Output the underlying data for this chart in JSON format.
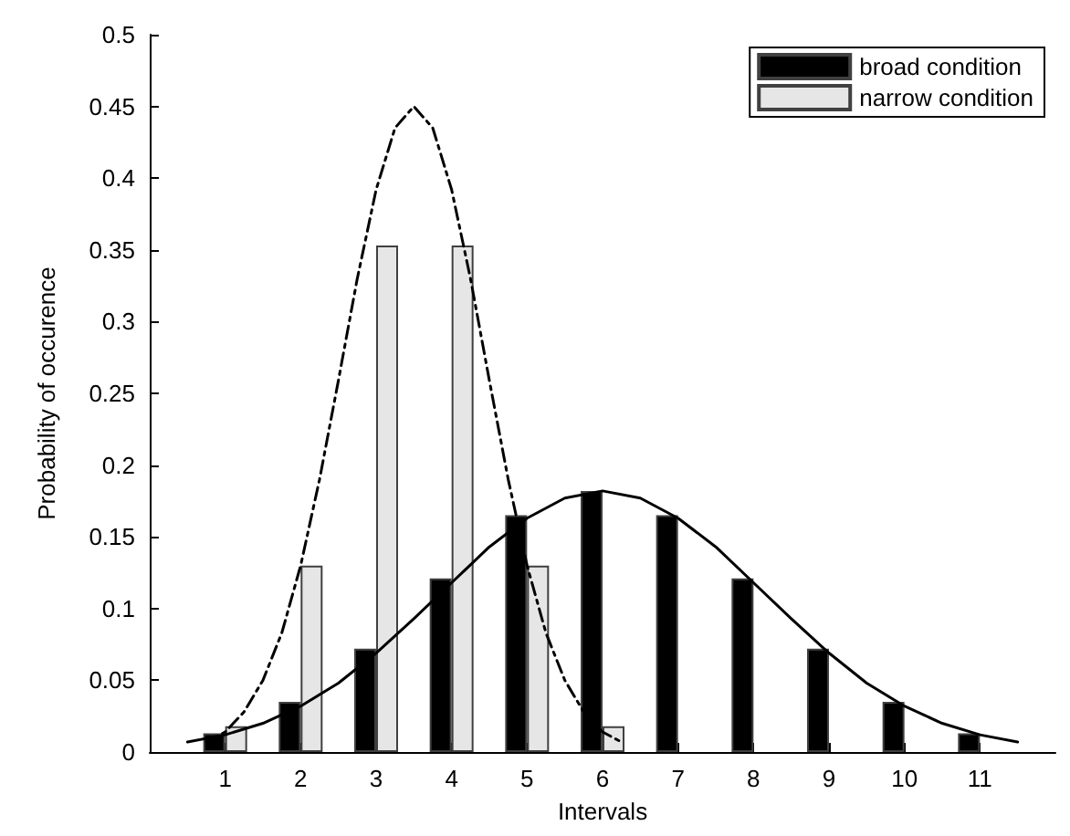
{
  "chart_data": {
    "type": "bar",
    "xlabel": "Intervals",
    "ylabel": "Probability of occurence",
    "x": [
      1,
      2,
      3,
      4,
      5,
      6,
      7,
      8,
      9,
      10,
      11
    ],
    "series": [
      {
        "name": "broad condition",
        "color": "#000000",
        "values": [
          0.013,
          0.035,
          0.072,
          0.121,
          0.165,
          0.182,
          0.165,
          0.121,
          0.072,
          0.035,
          0.013
        ]
      },
      {
        "name": "narrow condition",
        "color": "#e6e6e6",
        "values": [
          0.018,
          0.13,
          0.353,
          0.353,
          0.13,
          0.018,
          null,
          null,
          null,
          null,
          null
        ]
      },
      {
        "type": "line",
        "color": "#000000",
        "line_style": "solid",
        "x": [
          0.5,
          1,
          1.5,
          2,
          2.5,
          3,
          3.5,
          4,
          4.5,
          5,
          5.5,
          6,
          6.5,
          7,
          7.5,
          8,
          8.5,
          9,
          9.5,
          10,
          10.5,
          11,
          11.5
        ],
        "values": [
          0.007,
          0.012,
          0.02,
          0.032,
          0.048,
          0.069,
          0.093,
          0.118,
          0.143,
          0.163,
          0.177,
          0.182,
          0.177,
          0.163,
          0.143,
          0.118,
          0.093,
          0.069,
          0.048,
          0.032,
          0.02,
          0.012,
          0.007
        ]
      },
      {
        "type": "line",
        "color": "#000000",
        "line_style": "dashed",
        "x": [
          0.75,
          1,
          1.25,
          1.5,
          1.75,
          2,
          2.25,
          2.5,
          2.75,
          3,
          3.25,
          3.5,
          3.75,
          4,
          4.25,
          4.5,
          4.75,
          5,
          5.25,
          5.5,
          5.75,
          6,
          6.25
        ],
        "values": [
          0.007,
          0.014,
          0.028,
          0.05,
          0.083,
          0.13,
          0.19,
          0.259,
          0.33,
          0.392,
          0.435,
          0.45,
          0.435,
          0.392,
          0.33,
          0.259,
          0.19,
          0.13,
          0.083,
          0.05,
          0.028,
          0.014,
          0.007
        ]
      }
    ],
    "xlim": [
      0,
      12
    ],
    "xticks": [
      1,
      2,
      3,
      4,
      5,
      6,
      7,
      8,
      9,
      10,
      11
    ],
    "ylim": [
      0,
      0.5
    ],
    "yticks": [
      0,
      0.05,
      0.1,
      0.15,
      0.2,
      0.25,
      0.3,
      0.35,
      0.4,
      0.45,
      0.5
    ],
    "grid": false,
    "legend": "top right",
    "marker": "none"
  }
}
